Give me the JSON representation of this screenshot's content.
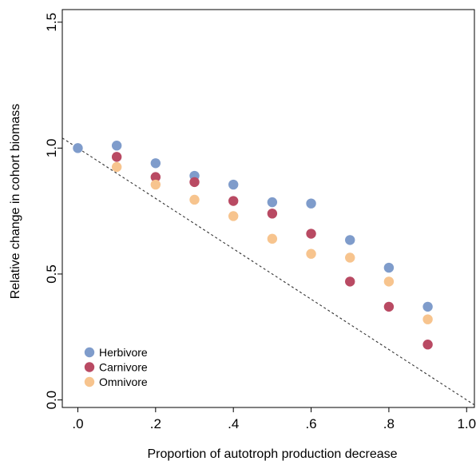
{
  "chart_data": {
    "type": "scatter",
    "title": "",
    "xlabel": "Proportion of autotroph production decrease",
    "ylabel": "Relative change in cohort biomass",
    "xlim": [
      -0.04,
      1.02
    ],
    "ylim": [
      -0.03,
      1.55
    ],
    "x_ticks": [
      {
        "value": 0.0,
        "label": ".0"
      },
      {
        "value": 0.2,
        "label": ".2"
      },
      {
        "value": 0.4,
        "label": ".4"
      },
      {
        "value": 0.6,
        "label": ".6"
      },
      {
        "value": 0.8,
        "label": ".8"
      },
      {
        "value": 1.0,
        "label": "1.0"
      }
    ],
    "y_ticks": [
      {
        "value": 0.0,
        "label": "0.0"
      },
      {
        "value": 0.5,
        "label": "0.5"
      },
      {
        "value": 1.0,
        "label": "1.0"
      },
      {
        "value": 1.5,
        "label": "1.5"
      }
    ],
    "grid": false,
    "legend_position": "bottom-left",
    "reference_line": {
      "style": "dashed",
      "color": "#333333",
      "points": [
        [
          -0.04,
          1.04
        ],
        [
          1.02,
          -0.02
        ]
      ]
    },
    "series": [
      {
        "name": "Herbivore",
        "color": "#7f9ccb",
        "x": [
          0.0,
          0.1,
          0.2,
          0.3,
          0.4,
          0.5,
          0.6,
          0.7,
          0.8,
          0.9
        ],
        "y": [
          1.0,
          1.01,
          0.94,
          0.89,
          0.855,
          0.785,
          0.78,
          0.635,
          0.525,
          0.37
        ]
      },
      {
        "name": "Carnivore",
        "color": "#b94a63",
        "x": [
          0.1,
          0.2,
          0.3,
          0.4,
          0.5,
          0.6,
          0.7,
          0.8,
          0.9
        ],
        "y": [
          0.965,
          0.885,
          0.865,
          0.79,
          0.74,
          0.66,
          0.47,
          0.37,
          0.22
        ]
      },
      {
        "name": "Omnivore",
        "color": "#f7c48e",
        "x": [
          0.1,
          0.2,
          0.3,
          0.4,
          0.5,
          0.6,
          0.7,
          0.8,
          0.9
        ],
        "y": [
          0.925,
          0.855,
          0.795,
          0.73,
          0.64,
          0.58,
          0.565,
          0.47,
          0.32
        ]
      }
    ]
  }
}
